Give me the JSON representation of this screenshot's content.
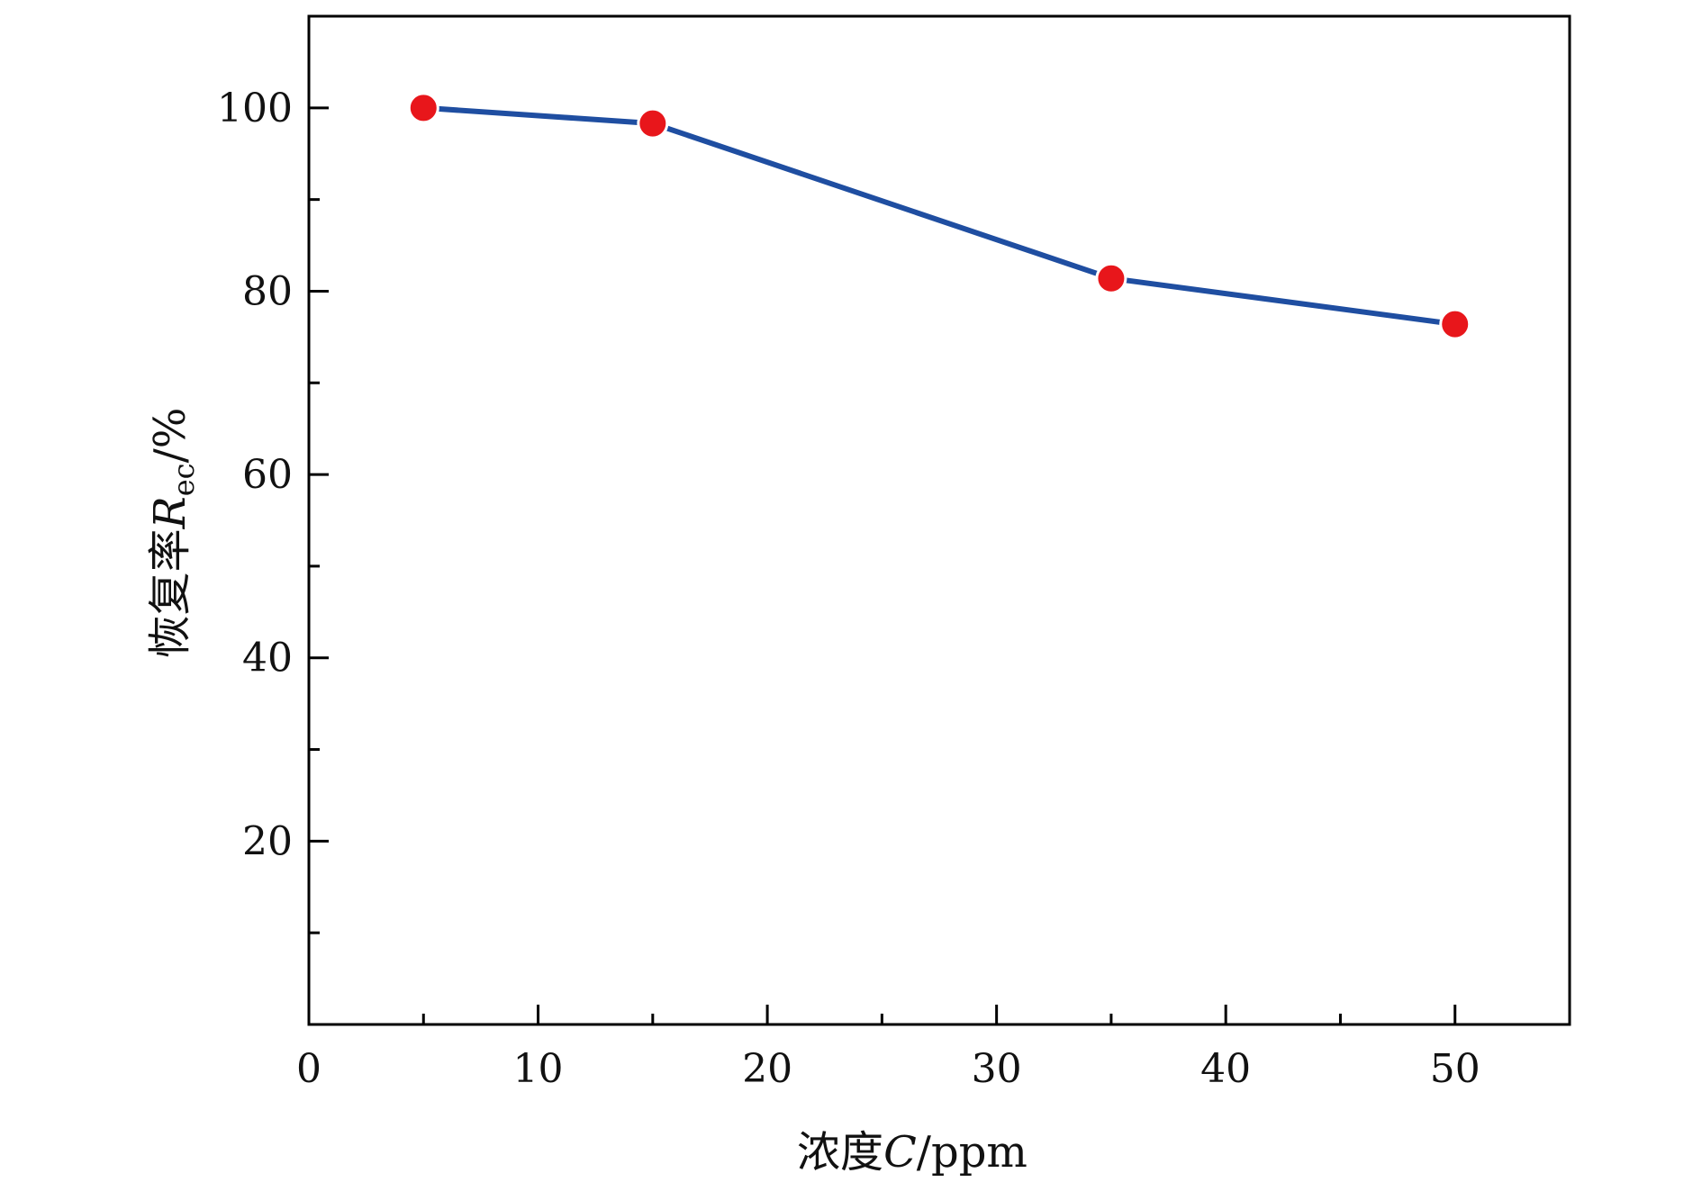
{
  "chart_data": {
    "type": "line",
    "title": "",
    "xlabel": {
      "prefix": "浓度",
      "symbol": "C",
      "unit": "/ppm"
    },
    "ylabel": {
      "prefix": "恢复率",
      "symbol": "R",
      "subscript": "ec",
      "unit": "/%"
    },
    "xlim": [
      0,
      55
    ],
    "ylim": [
      0,
      110
    ],
    "x_ticks": [
      0,
      10,
      20,
      30,
      40,
      50
    ],
    "x_tick_labels": [
      "0",
      "10",
      "20",
      "30",
      "40",
      "50"
    ],
    "x_minor_ticks": [
      5,
      15,
      25,
      35,
      45
    ],
    "y_ticks": [
      20,
      40,
      60,
      80,
      100
    ],
    "y_tick_labels": [
      "20",
      "40",
      "60",
      "80",
      "100"
    ],
    "y_minor_ticks": [
      10,
      30,
      50,
      70,
      90
    ],
    "grid": false,
    "series": [
      {
        "x": [
          5,
          15,
          35,
          50
        ],
        "values": [
          100,
          98.3,
          81.4,
          76.4
        ],
        "line_color": "#1f4ea1",
        "marker_color": "#e8161b"
      }
    ]
  }
}
